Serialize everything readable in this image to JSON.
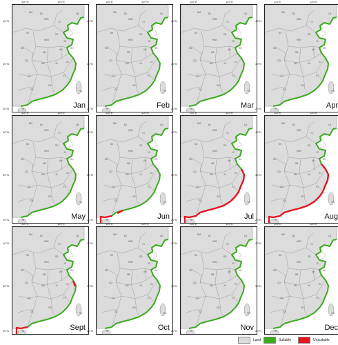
{
  "panels": [
    {
      "month": "Jan",
      "unsuitable_segments": []
    },
    {
      "month": "Feb",
      "unsuitable_segments": []
    },
    {
      "month": "Mar",
      "unsuitable_segments": []
    },
    {
      "month": "Apr",
      "unsuitable_segments": []
    },
    {
      "month": "May",
      "unsuitable_segments": []
    },
    {
      "month": "Jun",
      "unsuitable_segments": [
        "guangxi",
        "hainan-north"
      ]
    },
    {
      "month": "Jul",
      "unsuitable_segments": [
        "guangxi",
        "guangdong",
        "fujian",
        "zhejiang"
      ]
    },
    {
      "month": "Aug",
      "unsuitable_segments": [
        "guangxi",
        "guangdong",
        "fujian",
        "zhejiang",
        "shanghai"
      ]
    },
    {
      "month": "Sept",
      "unsuitable_segments": [
        "guangxi",
        "zhejiang-spot"
      ]
    },
    {
      "month": "Oct",
      "unsuitable_segments": []
    },
    {
      "month": "Nov",
      "unsuitable_segments": []
    },
    {
      "month": "Dec",
      "unsuitable_segments": []
    }
  ],
  "axis_ticks": {
    "lon": [
      "110°E",
      "120°E"
    ],
    "lat": [
      "40°N",
      "30°N",
      "20°N"
    ]
  },
  "province_labels": [
    "BJ",
    "TJ",
    "HEB",
    "SX",
    "SD",
    "HEN",
    "JS",
    "SH",
    "AH",
    "HB",
    "ZJ",
    "JX",
    "HN",
    "FJ",
    "GD",
    "GX",
    "HI",
    "TW",
    "CQ",
    "GZ",
    "SN",
    "NM",
    "LN"
  ],
  "legend": [
    {
      "label": "Land",
      "color": "#dcdcdc"
    },
    {
      "label": "Suitable",
      "color": "#3aaa1e"
    },
    {
      "label": "Unsuitable",
      "color": "#e8141e"
    }
  ],
  "colors": {
    "land": "#dcdcdc",
    "border": "#8a8a8a",
    "suitable": "#3aaa1e",
    "unsuitable": "#e8141e"
  }
}
